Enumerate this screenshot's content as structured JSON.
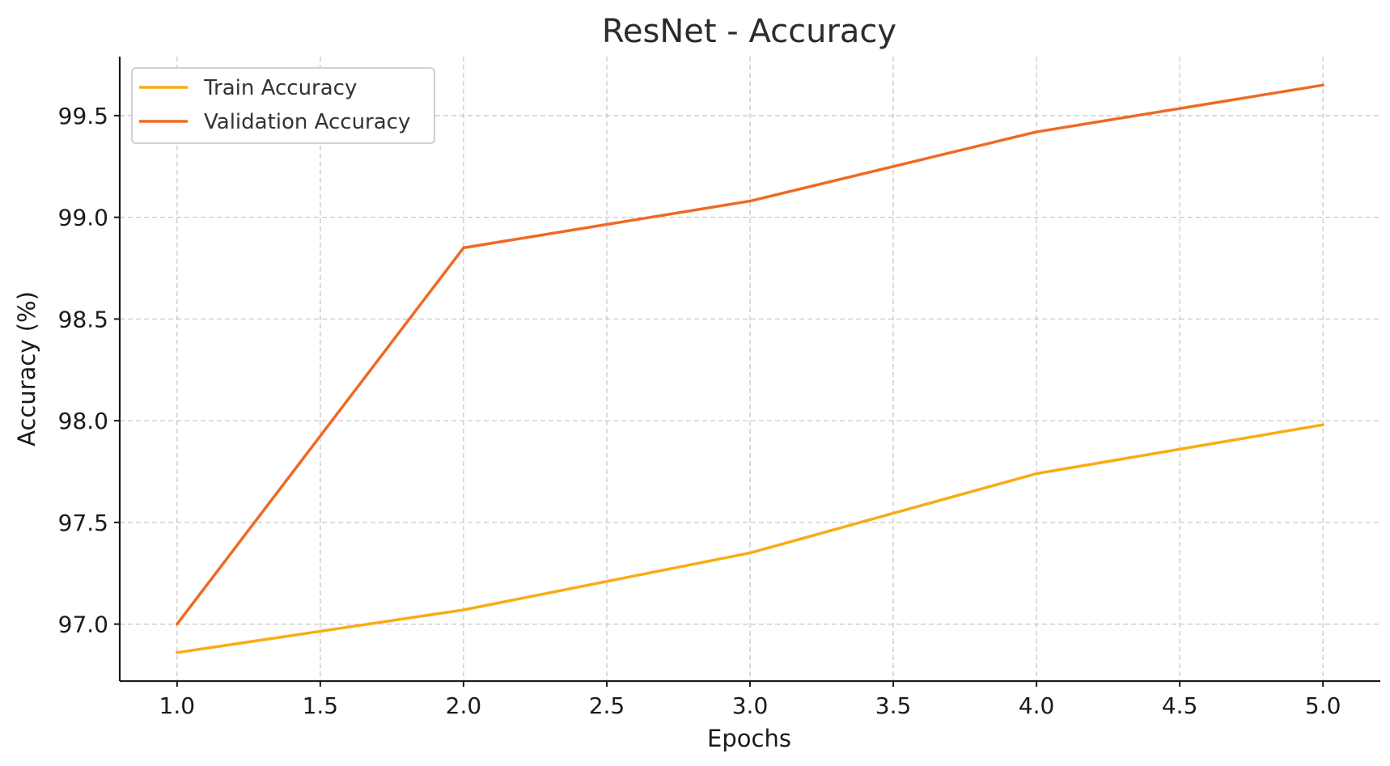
{
  "chart_data": {
    "type": "line",
    "title": "ResNet - Accuracy",
    "xlabel": "Epochs",
    "ylabel": "Accuracy (%)",
    "x": [
      1,
      2,
      3,
      4,
      5
    ],
    "series": [
      {
        "name": "Train Accuracy",
        "values": [
          96.86,
          97.07,
          97.35,
          97.74,
          97.98
        ],
        "color": "#f8ac14"
      },
      {
        "name": "Validation Accuracy",
        "values": [
          97.0,
          98.85,
          99.08,
          99.42,
          99.65
        ],
        "color": "#ee6a24"
      }
    ],
    "xlim": [
      0.8,
      5.2
    ],
    "ylim": [
      96.72,
      99.79
    ],
    "xticks": [
      "1.0",
      "1.5",
      "2.0",
      "2.5",
      "3.0",
      "3.5",
      "4.0",
      "4.5",
      "5.0"
    ],
    "yticks": [
      "97.0",
      "97.5",
      "98.0",
      "98.5",
      "99.0",
      "99.5"
    ],
    "grid": true,
    "legend_position": "top-left"
  }
}
